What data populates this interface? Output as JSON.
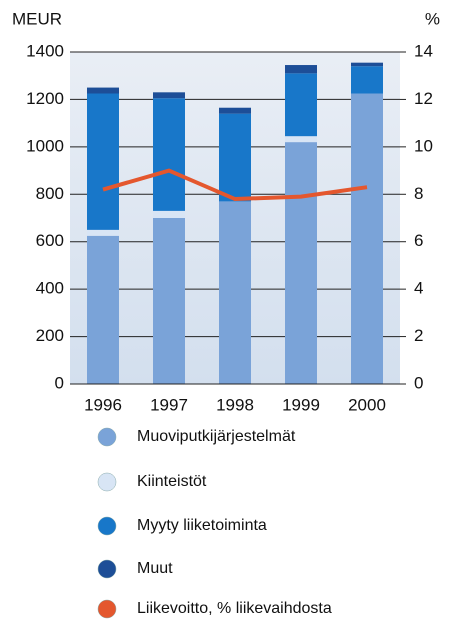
{
  "chart_data": {
    "type": "bar",
    "y_label": "MEUR",
    "y2_label": "%",
    "categories": [
      "1996",
      "1997",
      "1998",
      "1999",
      "2000"
    ],
    "stacked": true,
    "series": [
      {
        "name": "Muoviputkijärjestelmät",
        "color": "#7aa3d8",
        "values": [
          625,
          700,
          770,
          1020,
          1225
        ]
      },
      {
        "name": "Kiinteistöt",
        "color": "#d8e5f5",
        "values": [
          25,
          30,
          0,
          25,
          0
        ]
      },
      {
        "name": "Myyty liiketoiminta",
        "color": "#1877c9",
        "values": [
          575,
          475,
          370,
          265,
          115
        ]
      },
      {
        "name": "Muut",
        "color": "#1d4e97",
        "values": [
          25,
          25,
          25,
          35,
          15
        ]
      },
      {
        "name": "Liikevoitto, % liikevaihdosta",
        "color": "#e4572e",
        "type": "line",
        "axis": "y2",
        "values": [
          8.2,
          9.0,
          7.8,
          7.9,
          8.3
        ]
      }
    ],
    "ylim": [
      0,
      1400
    ],
    "yticks": [
      0,
      200,
      400,
      600,
      800,
      1000,
      1200,
      1400
    ],
    "y2lim": [
      0,
      14
    ],
    "y2ticks": [
      0,
      2,
      4,
      6,
      8,
      10,
      12,
      14
    ],
    "grid": true
  }
}
